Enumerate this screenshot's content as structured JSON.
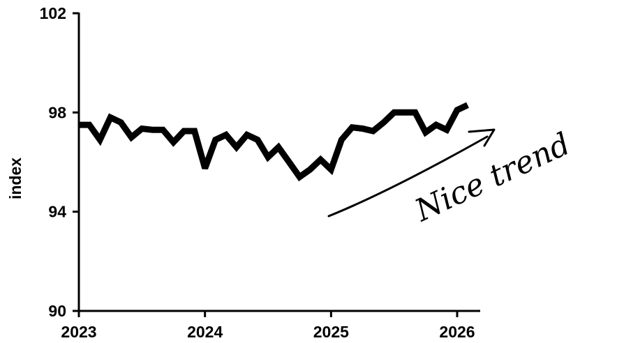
{
  "chart_data": {
    "type": "line",
    "title": "",
    "xlabel": "",
    "ylabel": "index",
    "xlim": [
      2023,
      2026.2
    ],
    "ylim": [
      90,
      102
    ],
    "xticks": [
      {
        "value": 2023,
        "label": "2023"
      },
      {
        "value": 2024,
        "label": "2024"
      },
      {
        "value": 2025,
        "label": "2025"
      },
      {
        "value": 2026,
        "label": "2026"
      }
    ],
    "yticks": [
      {
        "value": 90,
        "label": "90"
      },
      {
        "value": 94,
        "label": "94"
      },
      {
        "value": 98,
        "label": "98"
      },
      {
        "value": 102,
        "label": "102"
      }
    ],
    "grid": false,
    "legend": "none",
    "line_color": "#000000",
    "series": [
      {
        "x": [
          2023.0,
          2023.083,
          2023.167,
          2023.25,
          2023.333,
          2023.417,
          2023.5,
          2023.583,
          2023.667,
          2023.75,
          2023.833,
          2023.917,
          2024.0,
          2024.083,
          2024.167,
          2024.25,
          2024.333,
          2024.417,
          2024.5,
          2024.583,
          2024.667,
          2024.75,
          2024.833,
          2024.917,
          2025.0,
          2025.083,
          2025.167,
          2025.25,
          2025.333,
          2025.417,
          2025.5,
          2025.583,
          2025.667,
          2025.75,
          2025.833,
          2025.917,
          2026.0,
          2026.083
        ],
        "y": [
          97.5,
          97.5,
          96.9,
          97.8,
          97.6,
          97.0,
          97.35,
          97.3,
          97.3,
          96.8,
          97.25,
          97.25,
          95.75,
          96.9,
          97.1,
          96.6,
          97.1,
          96.9,
          96.2,
          96.6,
          96.0,
          95.4,
          95.7,
          96.1,
          95.7,
          96.9,
          97.4,
          97.35,
          97.25,
          97.6,
          98.0,
          98.0,
          98.0,
          97.2,
          97.5,
          97.3,
          98.1,
          98.3
        ]
      }
    ],
    "annotations": [
      {
        "text": "Nice trend",
        "style": "handwritten",
        "arrow": true
      }
    ]
  }
}
